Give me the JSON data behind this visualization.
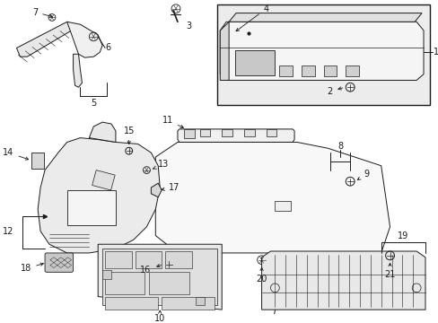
{
  "bg_color": "#ffffff",
  "line_color": "#1a1a1a",
  "box_color": "#e8e8e8",
  "fig_w": 4.89,
  "fig_h": 3.6,
  "dpi": 100
}
